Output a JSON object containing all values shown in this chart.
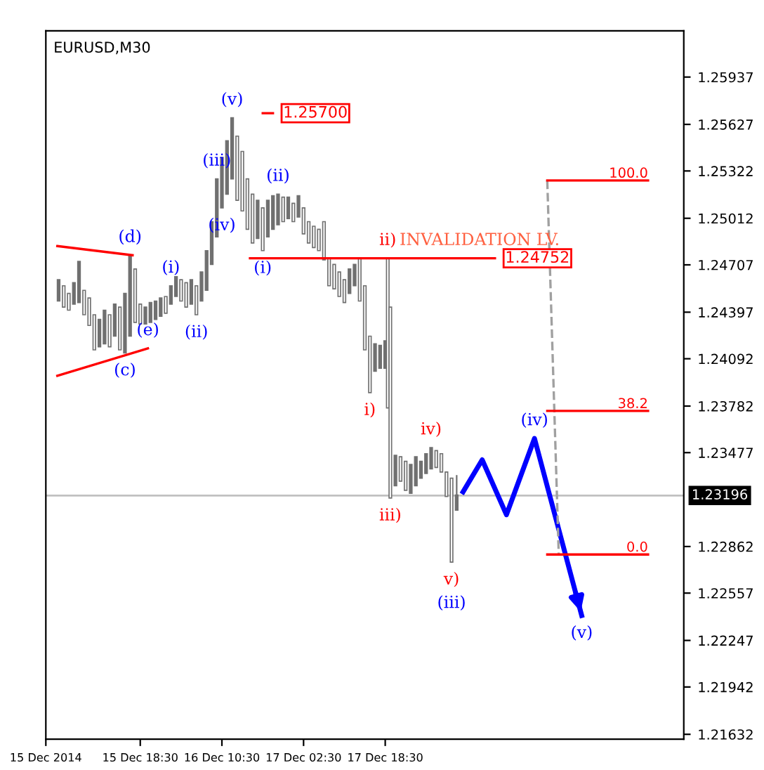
{
  "chart_data": {
    "type": "candlestick",
    "title": "EURUSD,M30",
    "color": "#707070",
    "grid": false,
    "x": [
      "2014-12-15T02:30",
      "2014-12-15T03:30",
      "2014-12-15T04:30",
      "2014-12-15T05:30",
      "2014-12-15T06:30",
      "2014-12-15T07:30",
      "2014-12-15T08:30",
      "2014-12-15T09:30",
      "2014-12-15T10:30",
      "2014-12-15T11:30",
      "2014-12-15T12:30",
      "2014-12-15T13:30",
      "2014-12-15T14:30",
      "2014-12-15T15:30",
      "2014-12-15T16:30",
      "2014-12-15T17:30",
      "2014-12-15T18:30",
      "2014-12-15T19:30",
      "2014-12-15T20:30",
      "2014-12-15T21:30",
      "2014-12-15T22:30",
      "2014-12-15T23:30",
      "2014-12-16T00:30",
      "2014-12-16T01:30",
      "2014-12-16T02:30",
      "2014-12-16T03:30",
      "2014-12-16T04:30",
      "2014-12-16T05:30",
      "2014-12-16T06:30",
      "2014-12-16T07:30",
      "2014-12-16T08:30",
      "2014-12-16T09:30",
      "2014-12-16T10:30",
      "2014-12-16T11:30",
      "2014-12-16T12:30",
      "2014-12-16T13:30",
      "2014-12-16T14:30",
      "2014-12-16T15:30",
      "2014-12-16T16:30",
      "2014-12-16T17:30",
      "2014-12-16T18:30",
      "2014-12-16T19:30",
      "2014-12-16T20:30",
      "2014-12-16T21:30",
      "2014-12-16T22:30",
      "2014-12-16T23:30",
      "2014-12-17T00:30",
      "2014-12-17T01:30",
      "2014-12-17T02:30",
      "2014-12-17T03:30",
      "2014-12-17T04:30",
      "2014-12-17T05:30",
      "2014-12-17T06:30",
      "2014-12-17T07:30",
      "2014-12-17T08:30",
      "2014-12-17T09:30",
      "2014-12-17T10:30",
      "2014-12-17T11:30",
      "2014-12-17T12:30",
      "2014-12-17T13:30",
      "2014-12-17T14:30",
      "2014-12-17T15:30",
      "2014-12-17T16:30",
      "2014-12-17T17:30",
      "2014-12-17T18:30",
      "2014-12-17T19:00",
      "2014-12-17T19:30",
      "2014-12-17T20:30",
      "2014-12-17T21:30",
      "2014-12-17T22:30",
      "2014-12-17T23:30",
      "2014-12-18T00:30",
      "2014-12-18T01:30",
      "2014-12-18T02:30",
      "2014-12-18T03:30",
      "2014-12-18T04:30",
      "2014-12-18T05:30",
      "2014-12-18T06:30",
      "2014-12-18T07:30",
      "2014-12-18T08:30"
    ],
    "ohlc": [
      [
        1.2447,
        1.2461,
        1.2447,
        1.2461
      ],
      [
        1.2457,
        1.2457,
        1.2443,
        1.2443
      ],
      [
        1.2452,
        1.2452,
        1.2441,
        1.2441
      ],
      [
        1.2445,
        1.2459,
        1.2445,
        1.2459
      ],
      [
        1.2446,
        1.2473,
        1.2446,
        1.2473
      ],
      [
        1.2454,
        1.2454,
        1.2438,
        1.2438
      ],
      [
        1.2449,
        1.2449,
        1.2431,
        1.2431
      ],
      [
        1.2438,
        1.2438,
        1.2415,
        1.2415
      ],
      [
        1.2417,
        1.2435,
        1.2417,
        1.2435
      ],
      [
        1.2419,
        1.2441,
        1.2419,
        1.2441
      ],
      [
        1.2438,
        1.2438,
        1.2417,
        1.2417
      ],
      [
        1.2424,
        1.2445,
        1.2424,
        1.2445
      ],
      [
        1.2443,
        1.2443,
        1.2415,
        1.2415
      ],
      [
        1.2413,
        1.2452,
        1.2413,
        1.2452
      ],
      [
        1.2424,
        1.2477,
        1.2424,
        1.2477
      ],
      [
        1.2468,
        1.2468,
        1.2433,
        1.2433
      ],
      [
        1.2445,
        1.2445,
        1.2432,
        1.2432
      ],
      [
        1.2432,
        1.2443,
        1.2432,
        1.2443
      ],
      [
        1.2433,
        1.2446,
        1.2433,
        1.2446
      ],
      [
        1.2435,
        1.2447,
        1.2435,
        1.2447
      ],
      [
        1.2437,
        1.2449,
        1.2437,
        1.2449
      ],
      [
        1.245,
        1.245,
        1.2439,
        1.2439
      ],
      [
        1.2445,
        1.2457,
        1.2445,
        1.2457
      ],
      [
        1.245,
        1.2463,
        1.245,
        1.2463
      ],
      [
        1.2461,
        1.2461,
        1.2447,
        1.2447
      ],
      [
        1.2459,
        1.2459,
        1.2443,
        1.2443
      ],
      [
        1.2445,
        1.2461,
        1.2445,
        1.2461
      ],
      [
        1.2457,
        1.2457,
        1.2438,
        1.2438
      ],
      [
        1.2447,
        1.2466,
        1.2447,
        1.2466
      ],
      [
        1.2454,
        1.248,
        1.2454,
        1.248
      ],
      [
        1.2471,
        1.2499,
        1.2471,
        1.2499
      ],
      [
        1.2489,
        1.2527,
        1.2489,
        1.2527
      ],
      [
        1.2508,
        1.2541,
        1.2508,
        1.2541
      ],
      [
        1.2517,
        1.2552,
        1.2517,
        1.2552
      ],
      [
        1.2527,
        1.2567,
        1.2527,
        1.2567
      ],
      [
        1.2555,
        1.2555,
        1.2513,
        1.2513
      ],
      [
        1.2545,
        1.2545,
        1.2506,
        1.2506
      ],
      [
        1.2527,
        1.2527,
        1.2494,
        1.2494
      ],
      [
        1.2517,
        1.2517,
        1.2485,
        1.2485
      ],
      [
        1.2488,
        1.2513,
        1.2488,
        1.2513
      ],
      [
        1.2508,
        1.2508,
        1.248,
        1.248
      ],
      [
        1.2489,
        1.2513,
        1.2489,
        1.2513
      ],
      [
        1.2494,
        1.2516,
        1.2494,
        1.2516
      ],
      [
        1.2497,
        1.2517,
        1.2497,
        1.2517
      ],
      [
        1.2515,
        1.2515,
        1.2499,
        1.2499
      ],
      [
        1.2501,
        1.2515,
        1.2501,
        1.2515
      ],
      [
        1.2511,
        1.2511,
        1.2499,
        1.2499
      ],
      [
        1.2502,
        1.2516,
        1.2502,
        1.2516
      ],
      [
        1.2508,
        1.2508,
        1.2491,
        1.2491
      ],
      [
        1.2499,
        1.2499,
        1.2485,
        1.2485
      ],
      [
        1.2496,
        1.2496,
        1.2482,
        1.2482
      ],
      [
        1.2494,
        1.2494,
        1.248,
        1.248
      ],
      [
        1.2499,
        1.2499,
        1.2474,
        1.2474
      ],
      [
        1.2475,
        1.2475,
        1.2457,
        1.2457
      ],
      [
        1.2471,
        1.2471,
        1.2455,
        1.2455
      ],
      [
        1.2466,
        1.2466,
        1.245,
        1.245
      ],
      [
        1.2461,
        1.2461,
        1.2446,
        1.2446
      ],
      [
        1.2452,
        1.2468,
        1.2452,
        1.2468
      ],
      [
        1.2457,
        1.2471,
        1.2457,
        1.2471
      ],
      [
        1.2475,
        1.2475,
        1.2447,
        1.2447
      ],
      [
        1.2457,
        1.2457,
        1.2415,
        1.2415
      ],
      [
        1.2424,
        1.2424,
        1.2387,
        1.2387
      ],
      [
        1.2401,
        1.2419,
        1.2401,
        1.2419
      ],
      [
        1.2403,
        1.2418,
        1.2403,
        1.2418
      ],
      [
        1.2403,
        1.2421,
        1.2403,
        1.2421
      ],
      [
        1.2475,
        1.2475,
        1.2377,
        1.2377
      ],
      [
        1.2443,
        1.2443,
        1.2318,
        1.2318
      ],
      [
        1.2326,
        1.2346,
        1.2326,
        1.2346
      ],
      [
        1.2345,
        1.2345,
        1.2329,
        1.2329
      ],
      [
        1.2342,
        1.2342,
        1.2323,
        1.2323
      ],
      [
        1.2321,
        1.234,
        1.2321,
        1.234
      ],
      [
        1.2326,
        1.2345,
        1.2326,
        1.2345
      ],
      [
        1.2331,
        1.2342,
        1.2331,
        1.2342
      ],
      [
        1.2334,
        1.2347,
        1.2334,
        1.2347
      ],
      [
        1.2337,
        1.2351,
        1.2337,
        1.2351
      ],
      [
        1.2349,
        1.2349,
        1.2338,
        1.2338
      ],
      [
        1.2347,
        1.2347,
        1.2335,
        1.2335
      ],
      [
        1.2335,
        1.2335,
        1.2319,
        1.2319
      ],
      [
        1.2331,
        1.2331,
        1.2276,
        1.2276
      ],
      [
        1.231,
        1.2333,
        1.231,
        1.232
      ]
    ],
    "series": [
      {
        "type": "line",
        "color": "#ff0000",
        "x": [
          "2014-12-15T02:15",
          "2014-12-15T17:00"
        ],
        "values": [
          1.2483,
          1.2477
        ]
      },
      {
        "type": "line",
        "color": "#ff0000",
        "x": [
          "2014-12-15T02:15",
          "2014-12-15T20:00"
        ],
        "values": [
          1.2398,
          1.2416
        ]
      },
      {
        "type": "line",
        "color": "#0000ff",
        "x": [
          "2014-12-18T09:45",
          "2014-12-18T13:30",
          "2014-12-18T18:15",
          "2014-12-18T23:45",
          "2014-12-19T09:00"
        ],
        "values": [
          1.2322,
          1.2343,
          1.2307,
          1.2357,
          1.2241
        ]
      },
      {
        "type": "line",
        "color": "#ff0000",
        "name": "1.24752",
        "x": [
          "2014-12-16T16:00",
          "2014-12-18T16:00"
        ],
        "values": [
          1.2475,
          1.2475
        ]
      },
      {
        "type": "line",
        "color": "#ff0000",
        "name": "1.25700",
        "x": [
          "2014-12-16T18:30",
          "2014-12-16T20:30"
        ],
        "values": [
          1.257,
          1.257
        ]
      },
      {
        "type": "line",
        "color": "#a0a0a0",
        "line_style": "dashed",
        "x": [
          "2014-12-19T02:15",
          "2014-12-19T04:30"
        ],
        "values": [
          1.2526,
          1.2281
        ]
      },
      {
        "type": "line",
        "color": "#ff0000",
        "name": "100.0",
        "x": [
          "2014-12-19T02:15",
          "2014-12-19T22:00"
        ],
        "values": [
          1.2526,
          1.2526
        ]
      },
      {
        "type": "line",
        "color": "#ff0000",
        "name": "38.2",
        "x": [
          "2014-12-19T02:15",
          "2014-12-19T22:00"
        ],
        "values": [
          1.2375,
          1.2375
        ]
      },
      {
        "type": "line",
        "color": "#ff0000",
        "name": "0.0",
        "x": [
          "2014-12-19T02:15",
          "2014-12-19T22:00"
        ],
        "values": [
          1.2281,
          1.2281
        ]
      }
    ],
    "ref_lines": [
      {
        "axis": "y",
        "value": 1.23196,
        "label": "1.23196",
        "color": "#c0c0c0"
      }
    ],
    "annotations": [
      {
        "text": "(d)",
        "x": "2014-12-15T16:30",
        "y": 1.2477
      },
      {
        "text": "(e)",
        "x": "2014-12-15T20:00",
        "y": 1.2416
      },
      {
        "text": "(c)",
        "x": "2014-12-15T15:30",
        "y": 1.2413
      },
      {
        "text": "(i)",
        "x": "2014-12-16T00:30",
        "y": 1.2457
      },
      {
        "text": "(ii)",
        "x": "2014-12-16T05:30",
        "y": 1.2438
      },
      {
        "text": "(iii)",
        "x": "2014-12-16T09:30",
        "y": 1.2527
      },
      {
        "text": "(iv)",
        "x": "2014-12-16T10:30",
        "y": 1.2508
      },
      {
        "text": "(v)",
        "x": "2014-12-16T12:30",
        "y": 1.2567
      },
      {
        "text": "(i)",
        "x": "2014-12-16T18:30",
        "y": 1.248
      },
      {
        "text": "(ii)",
        "x": "2014-12-16T21:30",
        "y": 1.2517
      },
      {
        "text": "ii)",
        "x": "2014-12-17T19:00",
        "y": 1.2475
      },
      {
        "text": "i)",
        "x": "2014-12-17T15:30",
        "y": 1.2387
      },
      {
        "text": "iii)",
        "x": "2014-12-17T19:30",
        "y": 1.2318
      },
      {
        "text": "iv)",
        "x": "2014-12-18T03:30",
        "y": 1.2351
      },
      {
        "text": "v)",
        "x": "2014-12-18T07:30",
        "y": 1.2276
      },
      {
        "text": "(iii)",
        "x": "2014-12-18T07:30",
        "y": 1.2276
      },
      {
        "text": "(iv)",
        "x": "2014-12-18T23:45",
        "y": 1.2357
      },
      {
        "text": "(v)",
        "x": "2014-12-19T09:00",
        "y": 1.2241
      },
      {
        "text": "INVALIDATION LV.",
        "x": "2014-12-18T13:00",
        "y": 1.2475
      }
    ],
    "xlim": [
      "2014-12-15T00:00",
      "2014-12-20T05:00"
    ],
    "ylim": [
      1.216,
      1.2624
    ],
    "xticks": [
      {
        "value": "2014-12-15T00:00",
        "label": "15 Dec 2014"
      },
      {
        "value": "2014-12-15T18:30",
        "label": "15 Dec 18:30"
      },
      {
        "value": "2014-12-16T10:30",
        "label": "16 Dec 10:30"
      },
      {
        "value": "2014-12-17T02:30",
        "label": "17 Dec 02:30"
      },
      {
        "value": "2014-12-17T18:30",
        "label": "17 Dec 18:30"
      }
    ],
    "yticks": [
      1.25937,
      1.25627,
      1.25322,
      1.25012,
      1.24707,
      1.24397,
      1.24092,
      1.23782,
      1.23477,
      1.22862,
      1.22557,
      1.22247,
      1.21942,
      1.21632
    ]
  }
}
